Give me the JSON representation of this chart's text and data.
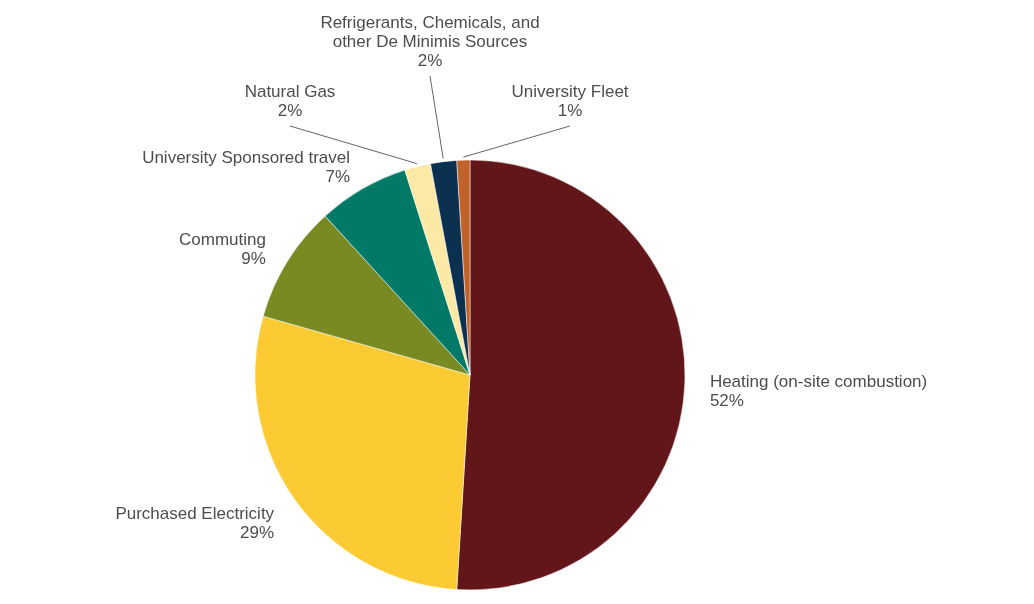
{
  "chart_data": {
    "type": "pie",
    "categories": [
      "Heating (on-site combustion)",
      "Purchased Electricity",
      "Commuting",
      "University Sponsored travel",
      "Natural Gas",
      "Refrigerants, Chemicals, and other De Minimis Sources",
      "University Fleet"
    ],
    "values": [
      52,
      29,
      9,
      7,
      2,
      2,
      1
    ],
    "value_labels": [
      "52%",
      "29%",
      "9%",
      "7%",
      "2%",
      "2%",
      "1%"
    ],
    "colors": [
      "#62161a",
      "#fccb33",
      "#7a8a22",
      "#007a66",
      "#fde9a6",
      "#0c3050",
      "#c0622a"
    ]
  }
}
